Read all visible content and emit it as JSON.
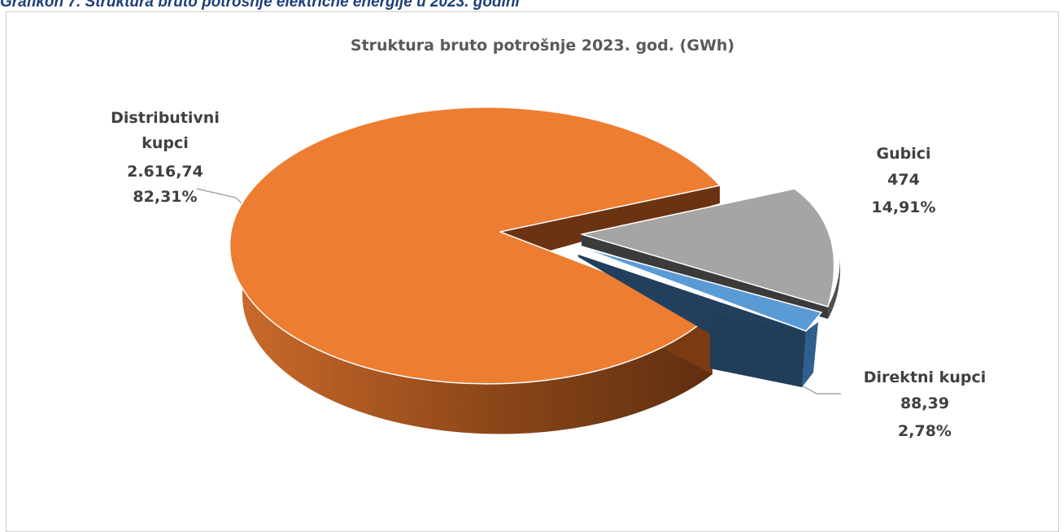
{
  "caption": "Grafikon 7. Struktura bruto potrošnje električne energije u 2023. godini",
  "chart_data": {
    "type": "pie",
    "title": "Struktura bruto potrošnje 2023. god. (GWh)",
    "slices": [
      {
        "name_lines": [
          "Distributivni",
          "kupci"
        ],
        "value_text": "2.616,74",
        "value": 2616.74,
        "percent_text": "82,31%",
        "percent": 82.31,
        "color": "#ED7D31"
      },
      {
        "name_lines": [
          "Gubici"
        ],
        "value_text": "474",
        "value": 474,
        "percent_text": "14,91%",
        "percent": 14.91,
        "color": "#A5A5A5"
      },
      {
        "name_lines": [
          "Direktni kupci"
        ],
        "value_text": "88,39",
        "value": 88.39,
        "percent_text": "2,78%",
        "percent": 2.78,
        "color": "#5B9BD5"
      }
    ]
  }
}
